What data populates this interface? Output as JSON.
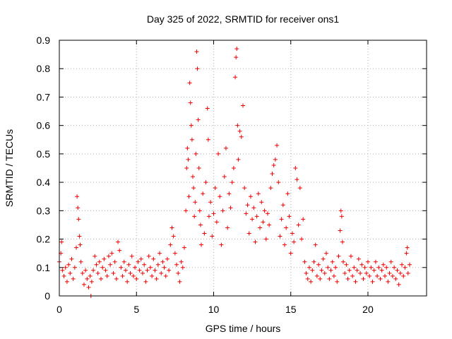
{
  "chart_data": {
    "type": "scatter",
    "title": "Day 325 of 2022, SRMTID for receiver ons1",
    "xlabel": "GPS time / hours",
    "ylabel": "SRMTID / TECUs",
    "xlim": [
      0,
      23.8
    ],
    "ylim": [
      0,
      0.9
    ],
    "x_ticks": [
      0,
      5,
      10,
      15,
      20
    ],
    "y_ticks": [
      0,
      0.1,
      0.2,
      0.3,
      0.4,
      0.5,
      0.6,
      0.7,
      0.8,
      0.9
    ],
    "grid": true,
    "marker": "+",
    "color": "#ee0000",
    "series": [
      {
        "name": "ons1",
        "points": [
          [
            0.0,
            0.12
          ],
          [
            0.1,
            0.15
          ],
          [
            0.15,
            0.19
          ],
          [
            0.2,
            0.09
          ],
          [
            0.3,
            0.07
          ],
          [
            0.4,
            0.1
          ],
          [
            0.5,
            0.05
          ],
          [
            0.6,
            0.11
          ],
          [
            0.7,
            0.08
          ],
          [
            0.8,
            0.13
          ],
          [
            0.9,
            0.06
          ],
          [
            1.0,
            0.1
          ],
          [
            1.1,
            0.17
          ],
          [
            1.15,
            0.35
          ],
          [
            1.2,
            0.31
          ],
          [
            1.25,
            0.27
          ],
          [
            1.3,
            0.21
          ],
          [
            1.35,
            0.18
          ],
          [
            1.4,
            0.12
          ],
          [
            1.5,
            0.08
          ],
          [
            1.6,
            0.04
          ],
          [
            1.7,
            0.09
          ],
          [
            1.8,
            0.06
          ],
          [
            1.9,
            0.03
          ],
          [
            2.0,
            0.07
          ],
          [
            2.05,
            0.0
          ],
          [
            2.1,
            0.05
          ],
          [
            2.2,
            0.09
          ],
          [
            2.3,
            0.14
          ],
          [
            2.4,
            0.11
          ],
          [
            2.5,
            0.08
          ],
          [
            2.6,
            0.12
          ],
          [
            2.7,
            0.06
          ],
          [
            2.8,
            0.1
          ],
          [
            2.9,
            0.13
          ],
          [
            3.0,
            0.09
          ],
          [
            3.1,
            0.07
          ],
          [
            3.2,
            0.14
          ],
          [
            3.3,
            0.11
          ],
          [
            3.4,
            0.15
          ],
          [
            3.5,
            0.08
          ],
          [
            3.6,
            0.12
          ],
          [
            3.7,
            0.06
          ],
          [
            3.8,
            0.19
          ],
          [
            3.9,
            0.16
          ],
          [
            4.0,
            0.1
          ],
          [
            4.1,
            0.07
          ],
          [
            4.2,
            0.12
          ],
          [
            4.3,
            0.09
          ],
          [
            4.4,
            0.05
          ],
          [
            4.5,
            0.11
          ],
          [
            4.6,
            0.08
          ],
          [
            4.7,
            0.14
          ],
          [
            4.8,
            0.07
          ],
          [
            4.9,
            0.1
          ],
          [
            5.0,
            0.06
          ],
          [
            5.1,
            0.12
          ],
          [
            5.2,
            0.09
          ],
          [
            5.3,
            0.13
          ],
          [
            5.4,
            0.08
          ],
          [
            5.5,
            0.11
          ],
          [
            5.6,
            0.05
          ],
          [
            5.7,
            0.09
          ],
          [
            5.8,
            0.14
          ],
          [
            5.9,
            0.1
          ],
          [
            6.0,
            0.07
          ],
          [
            6.1,
            0.13
          ],
          [
            6.2,
            0.09
          ],
          [
            6.3,
            0.06
          ],
          [
            6.4,
            0.11
          ],
          [
            6.5,
            0.15
          ],
          [
            6.6,
            0.08
          ],
          [
            6.7,
            0.12
          ],
          [
            6.8,
            0.1
          ],
          [
            6.9,
            0.07
          ],
          [
            7.0,
            0.13
          ],
          [
            7.1,
            0.09
          ],
          [
            7.2,
            0.18
          ],
          [
            7.3,
            0.24
          ],
          [
            7.4,
            0.21
          ],
          [
            7.5,
            0.15
          ],
          [
            7.6,
            0.11
          ],
          [
            7.7,
            0.08
          ],
          [
            7.8,
            0.05
          ],
          [
            7.9,
            0.12
          ],
          [
            8.0,
            0.1
          ],
          [
            8.1,
            0.17
          ],
          [
            8.2,
            0.3
          ],
          [
            8.25,
            0.45
          ],
          [
            8.3,
            0.52
          ],
          [
            8.35,
            0.48
          ],
          [
            8.4,
            0.35
          ],
          [
            8.45,
            0.75
          ],
          [
            8.5,
            0.68
          ],
          [
            8.55,
            0.6
          ],
          [
            8.6,
            0.55
          ],
          [
            8.65,
            0.42
          ],
          [
            8.7,
            0.38
          ],
          [
            8.75,
            0.28
          ],
          [
            8.8,
            0.33
          ],
          [
            8.85,
            0.5
          ],
          [
            8.9,
            0.86
          ],
          [
            8.95,
            0.8
          ],
          [
            9.0,
            0.62
          ],
          [
            9.05,
            0.45
          ],
          [
            9.1,
            0.3
          ],
          [
            9.15,
            0.25
          ],
          [
            9.2,
            0.18
          ],
          [
            9.3,
            0.36
          ],
          [
            9.4,
            0.22
          ],
          [
            9.5,
            0.4
          ],
          [
            9.6,
            0.66
          ],
          [
            9.65,
            0.55
          ],
          [
            9.7,
            0.28
          ],
          [
            9.8,
            0.33
          ],
          [
            9.9,
            0.21
          ],
          [
            10.0,
            0.29
          ],
          [
            10.1,
            0.38
          ],
          [
            10.2,
            0.26
          ],
          [
            10.3,
            0.5
          ],
          [
            10.4,
            0.35
          ],
          [
            10.5,
            0.18
          ],
          [
            10.6,
            0.3
          ],
          [
            10.7,
            0.42
          ],
          [
            10.8,
            0.52
          ],
          [
            10.9,
            0.24
          ],
          [
            11.0,
            0.36
          ],
          [
            11.1,
            0.31
          ],
          [
            11.2,
            0.4
          ],
          [
            11.3,
            0.45
          ],
          [
            11.4,
            0.77
          ],
          [
            11.45,
            0.84
          ],
          [
            11.5,
            0.87
          ],
          [
            11.55,
            0.6
          ],
          [
            11.6,
            0.48
          ],
          [
            11.7,
            0.58
          ],
          [
            11.8,
            0.56
          ],
          [
            11.9,
            0.67
          ],
          [
            12.0,
            0.38
          ],
          [
            12.1,
            0.29
          ],
          [
            12.2,
            0.32
          ],
          [
            12.3,
            0.22
          ],
          [
            12.4,
            0.35
          ],
          [
            12.5,
            0.27
          ],
          [
            12.6,
            0.31
          ],
          [
            12.7,
            0.19
          ],
          [
            12.8,
            0.28
          ],
          [
            12.9,
            0.36
          ],
          [
            13.0,
            0.24
          ],
          [
            13.1,
            0.33
          ],
          [
            13.2,
            0.26
          ],
          [
            13.3,
            0.3
          ],
          [
            13.4,
            0.2
          ],
          [
            13.5,
            0.29
          ],
          [
            13.6,
            0.25
          ],
          [
            13.7,
            0.38
          ],
          [
            13.8,
            0.43
          ],
          [
            13.9,
            0.46
          ],
          [
            14.0,
            0.48
          ],
          [
            14.1,
            0.53
          ],
          [
            14.2,
            0.4
          ],
          [
            14.3,
            0.21
          ],
          [
            14.4,
            0.27
          ],
          [
            14.5,
            0.32
          ],
          [
            14.6,
            0.18
          ],
          [
            14.7,
            0.24
          ],
          [
            14.8,
            0.36
          ],
          [
            14.9,
            0.28
          ],
          [
            15.0,
            0.15
          ],
          [
            15.1,
            0.22
          ],
          [
            15.2,
            0.19
          ],
          [
            15.3,
            0.45
          ],
          [
            15.4,
            0.41
          ],
          [
            15.5,
            0.25
          ],
          [
            15.6,
            0.38
          ],
          [
            15.7,
            0.2
          ],
          [
            15.8,
            0.27
          ],
          [
            15.9,
            0.12
          ],
          [
            16.0,
            0.08
          ],
          [
            16.1,
            0.06
          ],
          [
            16.2,
            0.1
          ],
          [
            16.3,
            0.05
          ],
          [
            16.4,
            0.09
          ],
          [
            16.5,
            0.12
          ],
          [
            16.6,
            0.18
          ],
          [
            16.7,
            0.07
          ],
          [
            16.8,
            0.11
          ],
          [
            16.9,
            0.06
          ],
          [
            17.0,
            0.09
          ],
          [
            17.1,
            0.13
          ],
          [
            17.2,
            0.08
          ],
          [
            17.3,
            0.15
          ],
          [
            17.4,
            0.1
          ],
          [
            17.5,
            0.06
          ],
          [
            17.6,
            0.09
          ],
          [
            17.7,
            0.12
          ],
          [
            17.8,
            0.07
          ],
          [
            17.9,
            0.1
          ],
          [
            18.0,
            0.05
          ],
          [
            18.1,
            0.14
          ],
          [
            18.2,
            0.23
          ],
          [
            18.25,
            0.3
          ],
          [
            18.3,
            0.28
          ],
          [
            18.35,
            0.19
          ],
          [
            18.4,
            0.12
          ],
          [
            18.5,
            0.08
          ],
          [
            18.6,
            0.11
          ],
          [
            18.7,
            0.06
          ],
          [
            18.8,
            0.09
          ],
          [
            18.9,
            0.14
          ],
          [
            19.0,
            0.07
          ],
          [
            19.1,
            0.1
          ],
          [
            19.2,
            0.05
          ],
          [
            19.3,
            0.09
          ],
          [
            19.4,
            0.13
          ],
          [
            19.5,
            0.08
          ],
          [
            19.6,
            0.11
          ],
          [
            19.7,
            0.06
          ],
          [
            19.8,
            0.1
          ],
          [
            19.9,
            0.08
          ],
          [
            20.0,
            0.12
          ],
          [
            20.1,
            0.07
          ],
          [
            20.2,
            0.1
          ],
          [
            20.3,
            0.05
          ],
          [
            20.4,
            0.09
          ],
          [
            20.5,
            0.12
          ],
          [
            20.6,
            0.07
          ],
          [
            20.7,
            0.1
          ],
          [
            20.8,
            0.06
          ],
          [
            20.9,
            0.09
          ],
          [
            21.0,
            0.11
          ],
          [
            21.1,
            0.07
          ],
          [
            21.2,
            0.1
          ],
          [
            21.3,
            0.05
          ],
          [
            21.4,
            0.08
          ],
          [
            21.5,
            0.12
          ],
          [
            21.6,
            0.07
          ],
          [
            21.7,
            0.1
          ],
          [
            21.8,
            0.06
          ],
          [
            21.9,
            0.09
          ],
          [
            22.0,
            0.04
          ],
          [
            22.1,
            0.08
          ],
          [
            22.2,
            0.11
          ],
          [
            22.3,
            0.07
          ],
          [
            22.4,
            0.1
          ],
          [
            22.5,
            0.15
          ],
          [
            22.55,
            0.17
          ],
          [
            22.6,
            0.08
          ],
          [
            22.7,
            0.11
          ]
        ]
      }
    ]
  }
}
